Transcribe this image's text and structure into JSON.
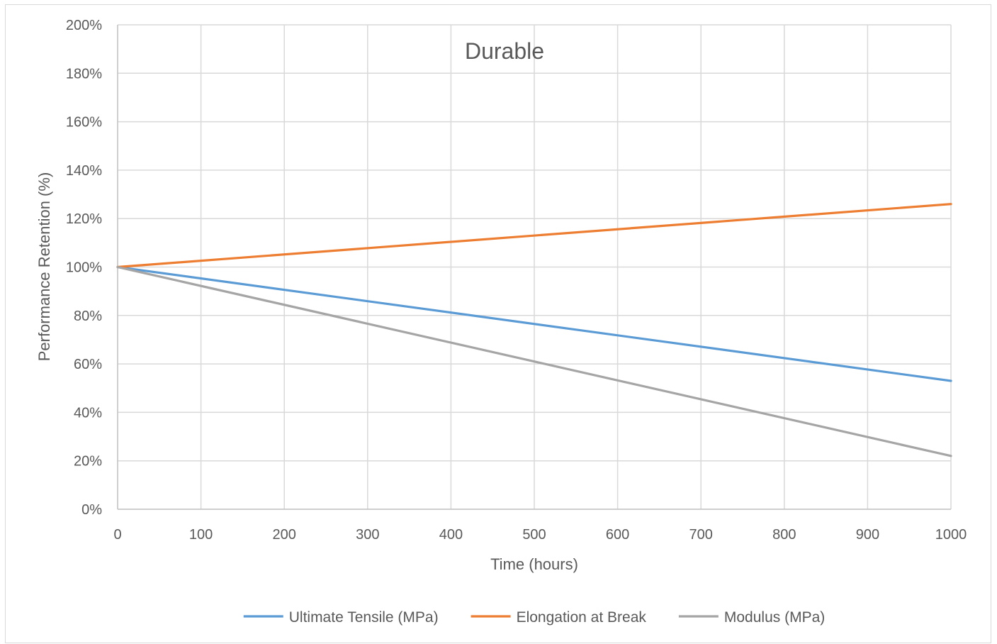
{
  "chart_data": {
    "type": "line",
    "title": "Durable",
    "xlabel": "Time (hours)",
    "ylabel": "Performance Retention (%)",
    "x": [
      0,
      1000
    ],
    "xlim": [
      0,
      1000
    ],
    "ylim": [
      0,
      200
    ],
    "x_ticks": [
      "0",
      "100",
      "200",
      "300",
      "400",
      "500",
      "600",
      "700",
      "800",
      "900",
      "1000"
    ],
    "y_ticks": [
      "0%",
      "20%",
      "40%",
      "60%",
      "80%",
      "100%",
      "120%",
      "140%",
      "160%",
      "180%",
      "200%"
    ],
    "grid": true,
    "legend_position": "bottom",
    "series": [
      {
        "name": "Ultimate Tensile (MPa)",
        "color": "#5b9bd5",
        "values": [
          100,
          53
        ]
      },
      {
        "name": "Elongation at Break",
        "color": "#ed7d31",
        "values": [
          100,
          126
        ]
      },
      {
        "name": "Modulus (MPa)",
        "color": "#a5a5a5",
        "values": [
          100,
          22
        ]
      }
    ]
  }
}
